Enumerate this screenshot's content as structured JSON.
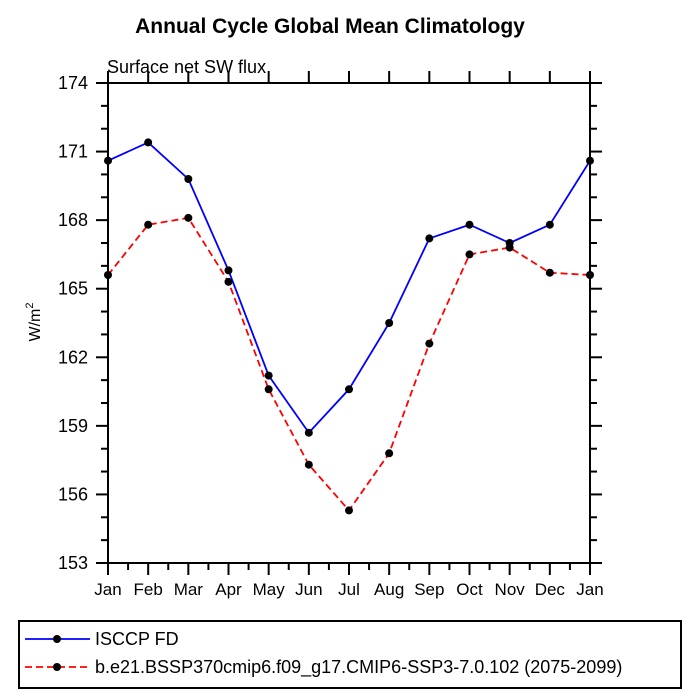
{
  "chart_data": {
    "type": "line",
    "title": "Annual Cycle Global Mean Climatology",
    "subtitle": "Surface net SW flux",
    "ylabel": "W/m",
    "ylabel_sup": "2",
    "x_tick_labels": [
      "Jan",
      "Feb",
      "Mar",
      "Apr",
      "May",
      "Jun",
      "Jul",
      "Aug",
      "Sep",
      "Oct",
      "Nov",
      "Dec",
      "Jan"
    ],
    "ylim": [
      153,
      174
    ],
    "y_major_step": 3,
    "y_minor_step": 1,
    "grid": false,
    "legend_position": "bottom",
    "axis_color": "#000000",
    "marker_shape": "circle",
    "series": [
      {
        "name": "ISCCP FD",
        "color": "#0000ff",
        "style": "solid",
        "marker_color": "#000000",
        "values": [
          170.6,
          171.4,
          169.8,
          165.8,
          161.2,
          158.7,
          160.6,
          163.5,
          167.2,
          167.8,
          167.0,
          167.8,
          170.6
        ]
      },
      {
        "name": "b.e21.BSSP370cmip6.f09_g17.CMIP6-SSP3-7.0.102 (2075-2099)",
        "color": "#ff0000",
        "style": "dashed",
        "marker_color": "#000000",
        "values": [
          165.6,
          167.8,
          168.1,
          165.3,
          160.6,
          157.3,
          155.3,
          157.8,
          162.6,
          166.5,
          166.8,
          165.7,
          165.6
        ]
      }
    ]
  }
}
